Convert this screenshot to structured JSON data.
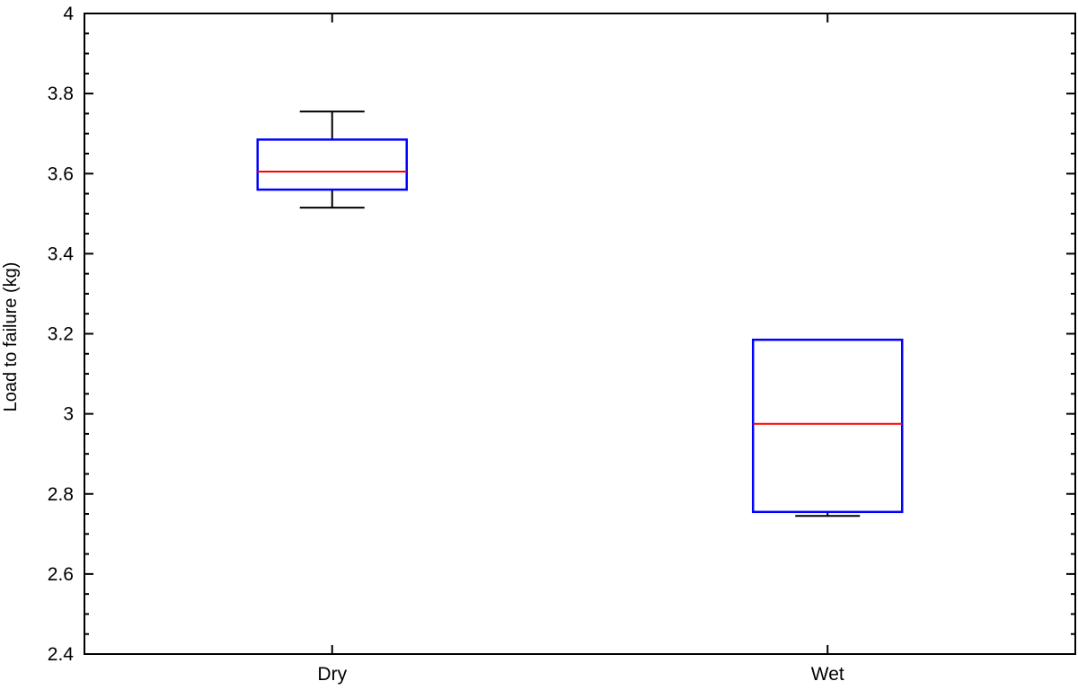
{
  "chart_data": {
    "type": "box",
    "title": "",
    "xlabel": "",
    "ylabel": "Load to failure (kg)",
    "ylim": [
      2.4,
      4.0
    ],
    "yticks": [
      "2.4",
      "2.6",
      "2.8",
      "3",
      "3.2",
      "3.4",
      "3.6",
      "3.8",
      "4"
    ],
    "yminor_step": 0.05,
    "categories": [
      "Dry",
      "Wet"
    ],
    "boxes": [
      {
        "category": "Dry",
        "whisker_low": 3.515,
        "q1": 3.56,
        "median": 3.605,
        "q3": 3.685,
        "whisker_high": 3.755
      },
      {
        "category": "Wet",
        "whisker_low": 2.745,
        "q1": 2.755,
        "median": 2.975,
        "q3": 3.185,
        "whisker_high": 3.185
      }
    ],
    "colors": {
      "box": "#0000ff",
      "median": "#ff0000",
      "whisker": "#000000",
      "axes": "#000000"
    },
    "grid": false,
    "legend": "none"
  }
}
